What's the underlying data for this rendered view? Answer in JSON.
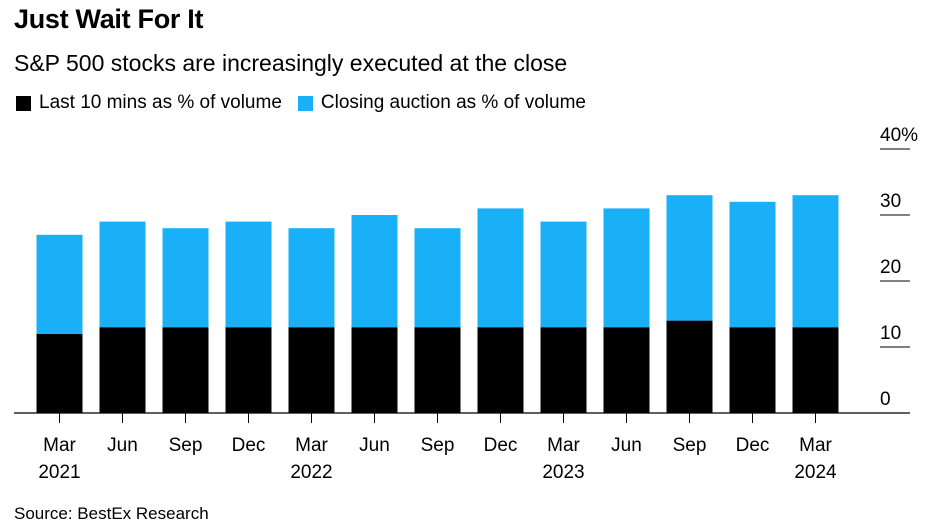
{
  "title": "Just Wait For It",
  "subtitle": "S&P 500 stocks are increasingly executed at the close",
  "source": "Source: BestEx Research",
  "legend": [
    {
      "label": "Last 10 mins as % of volume",
      "color": "#000000"
    },
    {
      "label": "Closing auction as % of volume",
      "color": "#1ab0f8"
    }
  ],
  "chart_data": {
    "type": "bar",
    "stacked": true,
    "categories": [
      "Mar 2021",
      "Jun 2021",
      "Sep 2021",
      "Dec 2021",
      "Mar 2022",
      "Jun 2022",
      "Sep 2022",
      "Dec 2022",
      "Mar 2023",
      "Jun 2023",
      "Sep 2023",
      "Dec 2023",
      "Mar 2024"
    ],
    "x_tick_labels": [
      {
        "month": "Mar",
        "year": "2021"
      },
      {
        "month": "Jun",
        "year": ""
      },
      {
        "month": "Sep",
        "year": ""
      },
      {
        "month": "Dec",
        "year": ""
      },
      {
        "month": "Mar",
        "year": "2022"
      },
      {
        "month": "Jun",
        "year": ""
      },
      {
        "month": "Sep",
        "year": ""
      },
      {
        "month": "Dec",
        "year": ""
      },
      {
        "month": "Mar",
        "year": "2023"
      },
      {
        "month": "Jun",
        "year": ""
      },
      {
        "month": "Sep",
        "year": ""
      },
      {
        "month": "Dec",
        "year": ""
      },
      {
        "month": "Mar",
        "year": "2024"
      }
    ],
    "series": [
      {
        "name": "Last 10 mins as % of volume",
        "color": "#000000",
        "values": [
          12,
          13,
          13,
          13,
          13,
          13,
          13,
          13,
          13,
          13,
          14,
          13,
          13
        ]
      },
      {
        "name": "Closing auction as % of volume",
        "color": "#1ab0f8",
        "values": [
          15,
          16,
          15,
          16,
          15,
          17,
          15,
          18,
          16,
          18,
          19,
          19,
          20
        ]
      }
    ],
    "ylim": [
      0,
      40
    ],
    "y_ticks": [
      0,
      10,
      20,
      30,
      40
    ],
    "y_tick_labels": [
      "0",
      "10",
      "20",
      "30",
      "40%"
    ],
    "y_axis_position": "right",
    "grid": false
  }
}
